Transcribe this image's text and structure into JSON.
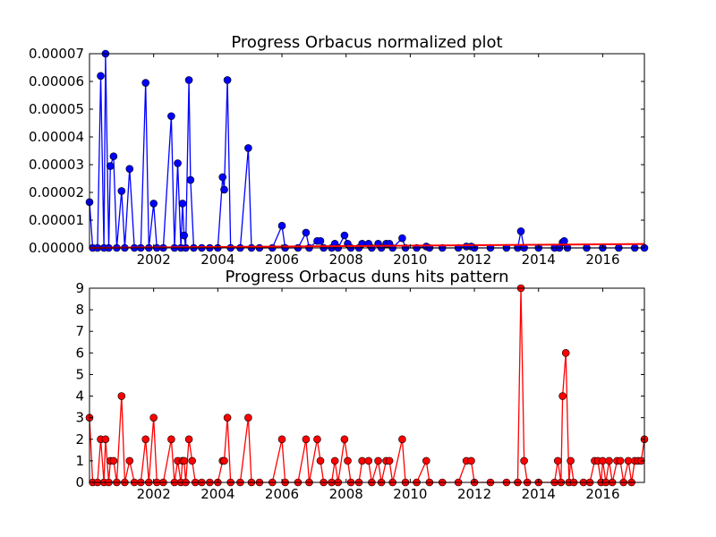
{
  "chart_data": [
    {
      "type": "line",
      "title": "Progress Orbacus normalized plot",
      "xlabel": "",
      "ylabel": "",
      "xlim": [
        2000.0,
        2017.3
      ],
      "ylim": [
        0,
        7e-05
      ],
      "x_ticks": [
        "2002",
        "2004",
        "2006",
        "2008",
        "2010",
        "2012",
        "2014",
        "2016"
      ],
      "y_ticks": [
        "0.00000",
        "0.00001",
        "0.00002",
        "0.00003",
        "0.00004",
        "0.00005",
        "0.00006",
        "0.00007"
      ],
      "grid": false,
      "series": [
        {
          "name": "",
          "color": "#0000ff",
          "marker": "circle",
          "points": [
            [
              2000.0,
              1.65e-05
            ],
            [
              2000.1,
              0
            ],
            [
              2000.25,
              0
            ],
            [
              2000.35,
              6.2e-05
            ],
            [
              2000.45,
              0
            ],
            [
              2000.5,
              7e-05
            ],
            [
              2000.6,
              0
            ],
            [
              2000.65,
              2.95e-05
            ],
            [
              2000.75,
              3.3e-05
            ],
            [
              2000.85,
              0
            ],
            [
              2001.0,
              2.05e-05
            ],
            [
              2001.1,
              0
            ],
            [
              2001.25,
              2.85e-05
            ],
            [
              2001.4,
              0
            ],
            [
              2001.6,
              0
            ],
            [
              2001.75,
              5.95e-05
            ],
            [
              2001.85,
              0
            ],
            [
              2002.0,
              1.6e-05
            ],
            [
              2002.1,
              0
            ],
            [
              2002.3,
              0
            ],
            [
              2002.55,
              4.75e-05
            ],
            [
              2002.65,
              0
            ],
            [
              2002.75,
              3.05e-05
            ],
            [
              2002.85,
              0
            ],
            [
              2002.9,
              1.6e-05
            ],
            [
              2002.95,
              4.5e-06
            ],
            [
              2003.0,
              0
            ],
            [
              2003.1,
              6.05e-05
            ],
            [
              2003.15,
              2.45e-05
            ],
            [
              2003.25,
              0
            ],
            [
              2003.5,
              0
            ],
            [
              2003.75,
              0
            ],
            [
              2004.0,
              0
            ],
            [
              2004.15,
              2.55e-05
            ],
            [
              2004.2,
              2.1e-05
            ],
            [
              2004.3,
              6.05e-05
            ],
            [
              2004.4,
              0
            ],
            [
              2004.7,
              0
            ],
            [
              2004.95,
              3.6e-05
            ],
            [
              2005.05,
              0
            ],
            [
              2005.3,
              0
            ],
            [
              2005.7,
              0
            ],
            [
              2006.0,
              8e-06
            ],
            [
              2006.1,
              0
            ],
            [
              2006.5,
              0
            ],
            [
              2006.75,
              5.5e-06
            ],
            [
              2006.85,
              0
            ],
            [
              2007.1,
              2.5e-06
            ],
            [
              2007.2,
              2.5e-06
            ],
            [
              2007.3,
              0
            ],
            [
              2007.55,
              0
            ],
            [
              2007.65,
              1.5e-06
            ],
            [
              2007.75,
              0
            ],
            [
              2007.95,
              4.5e-06
            ],
            [
              2008.05,
              1.5e-06
            ],
            [
              2008.15,
              0
            ],
            [
              2008.4,
              0
            ],
            [
              2008.5,
              1.5e-06
            ],
            [
              2008.7,
              1.5e-06
            ],
            [
              2008.8,
              0
            ],
            [
              2009.0,
              1.5e-06
            ],
            [
              2009.1,
              0
            ],
            [
              2009.25,
              1.5e-06
            ],
            [
              2009.35,
              1.5e-06
            ],
            [
              2009.45,
              0
            ],
            [
              2009.75,
              3.5e-06
            ],
            [
              2009.85,
              0
            ],
            [
              2010.2,
              0
            ],
            [
              2010.5,
              5e-07
            ],
            [
              2010.6,
              0
            ],
            [
              2011.0,
              0
            ],
            [
              2011.5,
              0
            ],
            [
              2011.75,
              5e-07
            ],
            [
              2011.9,
              5e-07
            ],
            [
              2012.0,
              0
            ],
            [
              2012.5,
              0
            ],
            [
              2013.0,
              0
            ],
            [
              2013.35,
              0
            ],
            [
              2013.45,
              6e-06
            ],
            [
              2013.55,
              0
            ],
            [
              2014.0,
              0
            ],
            [
              2014.5,
              0
            ],
            [
              2014.65,
              0
            ],
            [
              2014.75,
              2e-06
            ],
            [
              2014.8,
              2.5e-06
            ],
            [
              2014.9,
              0
            ],
            [
              2015.5,
              0
            ],
            [
              2016.0,
              0
            ],
            [
              2016.5,
              0
            ],
            [
              2017.0,
              0
            ],
            [
              2017.3,
              0
            ]
          ]
        },
        {
          "name": "",
          "color": "#ff0000",
          "marker": "none",
          "points": [
            [
              2000.0,
              0
            ],
            [
              2017.3,
              1.4e-06
            ]
          ]
        }
      ]
    },
    {
      "type": "line",
      "title": "Progress Orbacus duns hits pattern",
      "xlabel": "",
      "ylabel": "",
      "xlim": [
        2000.0,
        2017.3
      ],
      "ylim": [
        0,
        9
      ],
      "x_ticks": [
        "2002",
        "2004",
        "2006",
        "2008",
        "2010",
        "2012",
        "2014",
        "2016"
      ],
      "y_ticks": [
        "0",
        "1",
        "2",
        "3",
        "4",
        "5",
        "6",
        "7",
        "8",
        "9"
      ],
      "grid": false,
      "series": [
        {
          "name": "",
          "color": "#ff0000",
          "marker": "circle",
          "points": [
            [
              2000.0,
              3
            ],
            [
              2000.1,
              0
            ],
            [
              2000.25,
              0
            ],
            [
              2000.35,
              2
            ],
            [
              2000.45,
              0
            ],
            [
              2000.5,
              2
            ],
            [
              2000.6,
              0
            ],
            [
              2000.65,
              1
            ],
            [
              2000.75,
              1
            ],
            [
              2000.85,
              0
            ],
            [
              2001.0,
              4
            ],
            [
              2001.1,
              0
            ],
            [
              2001.25,
              1
            ],
            [
              2001.4,
              0
            ],
            [
              2001.6,
              0
            ],
            [
              2001.75,
              2
            ],
            [
              2001.85,
              0
            ],
            [
              2002.0,
              3
            ],
            [
              2002.1,
              0
            ],
            [
              2002.3,
              0
            ],
            [
              2002.55,
              2
            ],
            [
              2002.65,
              0
            ],
            [
              2002.75,
              1
            ],
            [
              2002.85,
              0
            ],
            [
              2002.9,
              1
            ],
            [
              2002.95,
              1
            ],
            [
              2003.0,
              0
            ],
            [
              2003.1,
              2
            ],
            [
              2003.2,
              1
            ],
            [
              2003.3,
              0
            ],
            [
              2003.5,
              0
            ],
            [
              2003.75,
              0
            ],
            [
              2004.0,
              0
            ],
            [
              2004.15,
              1
            ],
            [
              2004.2,
              1
            ],
            [
              2004.3,
              3
            ],
            [
              2004.4,
              0
            ],
            [
              2004.7,
              0
            ],
            [
              2004.95,
              3
            ],
            [
              2005.05,
              0
            ],
            [
              2005.3,
              0
            ],
            [
              2005.7,
              0
            ],
            [
              2006.0,
              2
            ],
            [
              2006.1,
              0
            ],
            [
              2006.5,
              0
            ],
            [
              2006.75,
              2
            ],
            [
              2006.85,
              0
            ],
            [
              2007.1,
              2
            ],
            [
              2007.2,
              1
            ],
            [
              2007.3,
              0
            ],
            [
              2007.55,
              0
            ],
            [
              2007.65,
              1
            ],
            [
              2007.75,
              0
            ],
            [
              2007.95,
              2
            ],
            [
              2008.05,
              1
            ],
            [
              2008.15,
              0
            ],
            [
              2008.4,
              0
            ],
            [
              2008.5,
              1
            ],
            [
              2008.7,
              1
            ],
            [
              2008.8,
              0
            ],
            [
              2009.0,
              1
            ],
            [
              2009.1,
              0
            ],
            [
              2009.25,
              1
            ],
            [
              2009.35,
              1
            ],
            [
              2009.45,
              0
            ],
            [
              2009.75,
              2
            ],
            [
              2009.85,
              0
            ],
            [
              2010.2,
              0
            ],
            [
              2010.5,
              1
            ],
            [
              2010.6,
              0
            ],
            [
              2011.0,
              0
            ],
            [
              2011.5,
              0
            ],
            [
              2011.75,
              1
            ],
            [
              2011.9,
              1
            ],
            [
              2012.0,
              0
            ],
            [
              2012.5,
              0
            ],
            [
              2013.0,
              0
            ],
            [
              2013.35,
              0
            ],
            [
              2013.45,
              9
            ],
            [
              2013.55,
              1
            ],
            [
              2013.65,
              0
            ],
            [
              2014.0,
              0
            ],
            [
              2014.5,
              0
            ],
            [
              2014.6,
              1
            ],
            [
              2014.7,
              0
            ],
            [
              2014.75,
              4
            ],
            [
              2014.85,
              6
            ],
            [
              2014.95,
              0
            ],
            [
              2015.0,
              1
            ],
            [
              2015.1,
              0
            ],
            [
              2015.4,
              0
            ],
            [
              2015.6,
              0
            ],
            [
              2015.75,
              1
            ],
            [
              2015.85,
              1
            ],
            [
              2015.95,
              0
            ],
            [
              2016.0,
              1
            ],
            [
              2016.1,
              0
            ],
            [
              2016.2,
              1
            ],
            [
              2016.3,
              0
            ],
            [
              2016.45,
              1
            ],
            [
              2016.55,
              1
            ],
            [
              2016.65,
              0
            ],
            [
              2016.8,
              1
            ],
            [
              2016.9,
              0
            ],
            [
              2017.0,
              1
            ],
            [
              2017.1,
              1
            ],
            [
              2017.2,
              1
            ],
            [
              2017.3,
              2
            ]
          ]
        }
      ]
    }
  ]
}
